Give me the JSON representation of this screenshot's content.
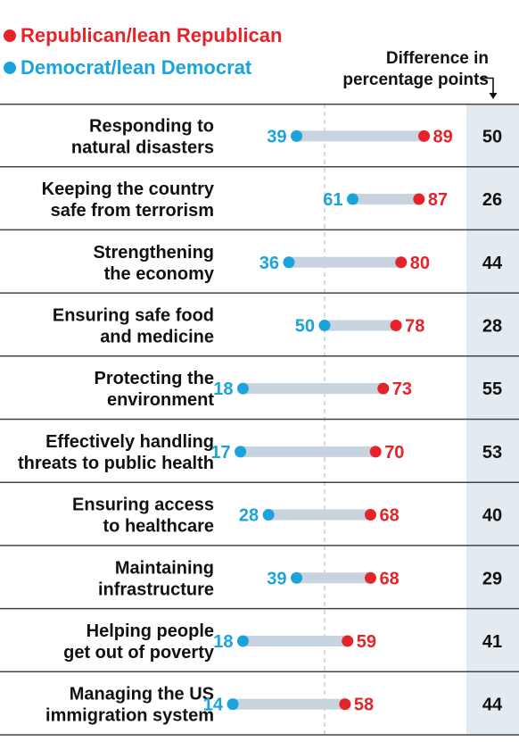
{
  "legend": {
    "republican": "Republican/lean Republican",
    "democrat": "Democrat/lean Democrat"
  },
  "diff_header": {
    "line1": "Difference in",
    "line2": "percentage points"
  },
  "colors": {
    "republican": "#e5242a",
    "democrat": "#1aa3dd",
    "connector": "#c7d4df",
    "diff_bg": "#e3eaf0",
    "divider": "#444444",
    "reference_line": "#b5b5b5"
  },
  "chart_data": {
    "type": "dumbbell",
    "categories": [
      "Responding to natural disasters",
      "Keeping the country safe from terrorism",
      "Strengthening the economy",
      "Ensuring safe food and medicine",
      "Protecting the environment",
      "Effectively handling threats to public health",
      "Ensuring access to healthcare",
      "Maintaining infrastructure",
      "Helping people get out of poverty",
      "Managing the US immigration system"
    ],
    "label_lines": [
      [
        "Responding to",
        "natural disasters"
      ],
      [
        "Keeping the country",
        "safe from terrorism"
      ],
      [
        "Strengthening",
        "the economy"
      ],
      [
        "Ensuring safe food",
        "and medicine"
      ],
      [
        "Protecting the",
        "environment"
      ],
      [
        "Effectively handling",
        "threats to public health"
      ],
      [
        "Ensuring access",
        "to healthcare"
      ],
      [
        "Maintaining",
        "infrastructure"
      ],
      [
        "Helping people",
        "get out of poverty"
      ],
      [
        "Managing the US",
        "immigration system"
      ]
    ],
    "series": [
      {
        "name": "Republican/lean Republican",
        "values": [
          89,
          87,
          80,
          78,
          73,
          70,
          68,
          68,
          59,
          58
        ]
      },
      {
        "name": "Democrat/lean Democrat",
        "values": [
          39,
          61,
          36,
          50,
          18,
          17,
          28,
          39,
          18,
          14
        ]
      }
    ],
    "difference": [
      50,
      26,
      44,
      28,
      55,
      53,
      40,
      29,
      41,
      44
    ],
    "reference_line": 50,
    "xlim": [
      0,
      100
    ]
  }
}
